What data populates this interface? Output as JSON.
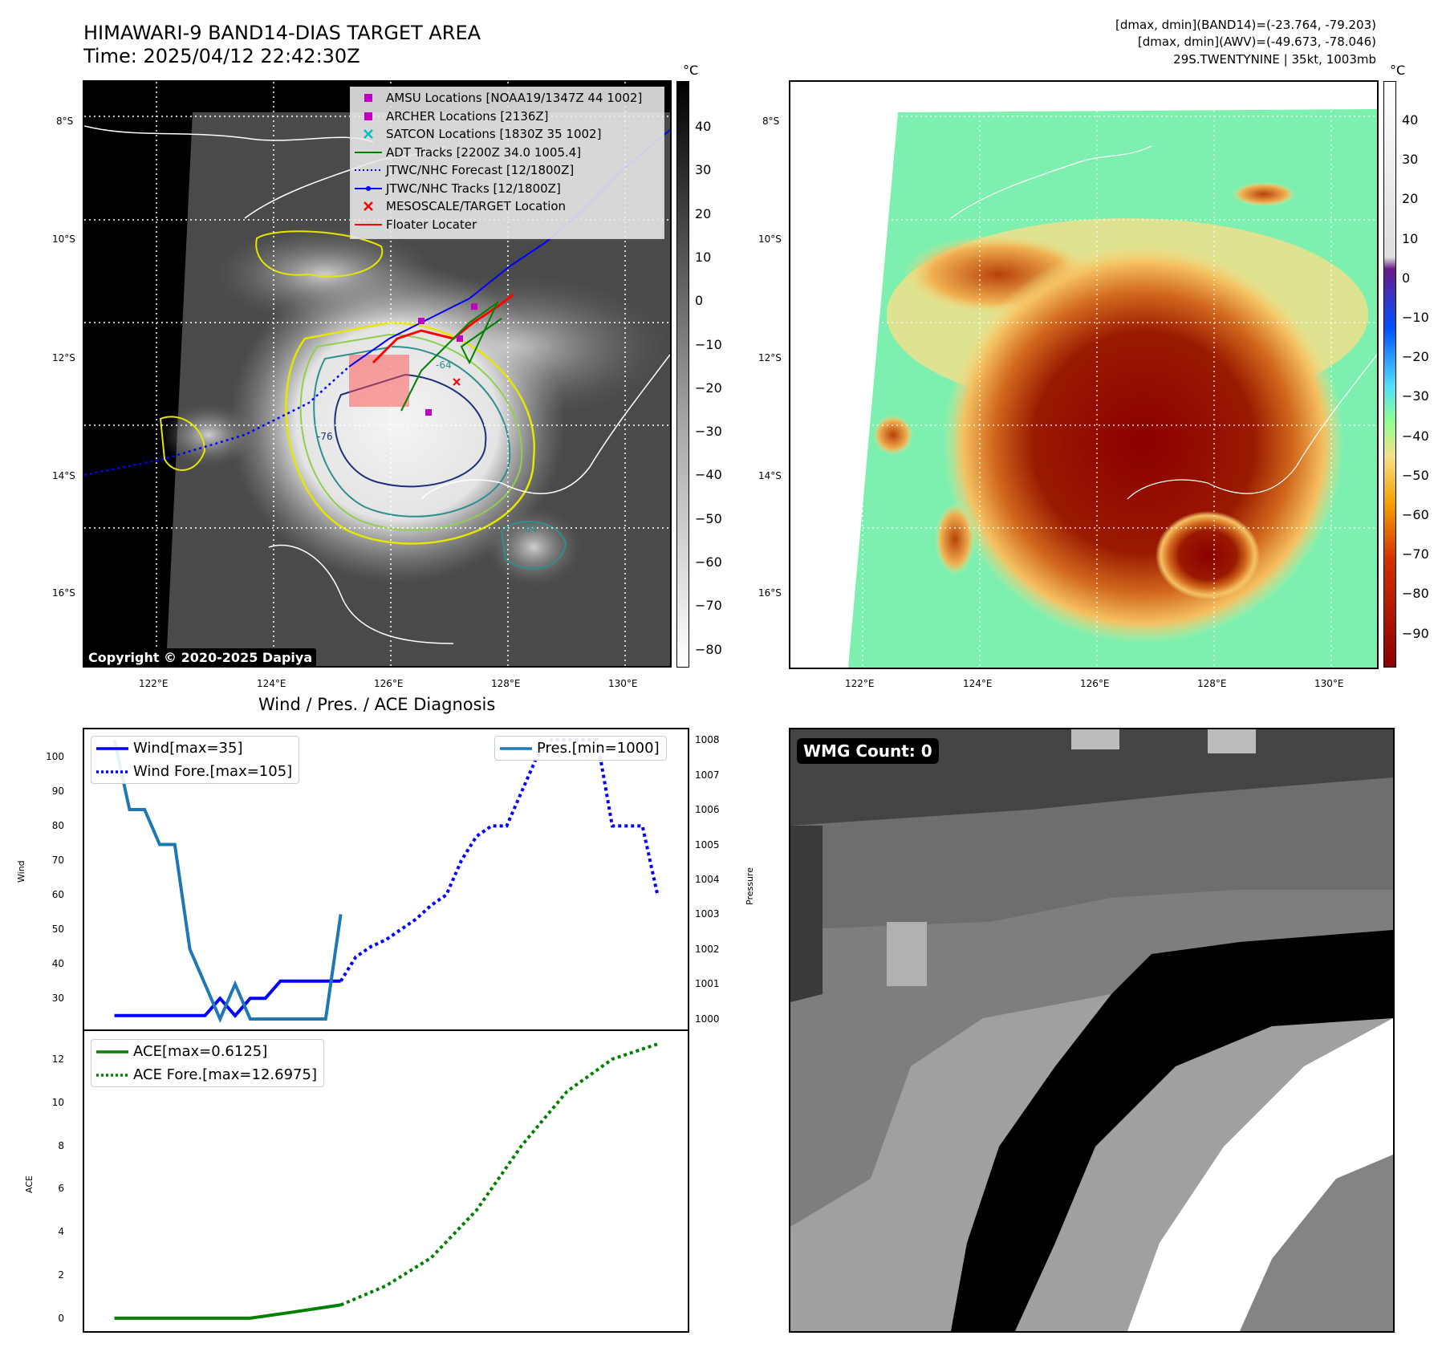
{
  "header": {
    "title_line1": "HIMAWARI-9 BAND14-DIAS TARGET AREA",
    "title_line2": "Time: 2025/04/12 22:42:30Z",
    "info_line1": "[dmax, dmin](BAND14)=(-23.764, -79.203)",
    "info_line2": "[dmax, dmin](AWV)=(-49.673, -78.046)",
    "info_line3": "29S.TWENTYNINE | 35kt, 1003mb"
  },
  "map": {
    "lat_labels": [
      "8°S",
      "10°S",
      "12°S",
      "14°S",
      "16°S"
    ],
    "lon_labels": [
      "122°E",
      "124°E",
      "126°E",
      "128°E",
      "130°E"
    ],
    "contour_labels": [
      "-64",
      "-76",
      "-64"
    ],
    "copyright": "Copyright © 2020-2025 Dapiya",
    "legend": [
      {
        "label": "AMSU Locations [NOAA19/1347Z 44 1002]",
        "symbol": "square",
        "color": "#c000c0"
      },
      {
        "label": "ARCHER Locations [2136Z]",
        "symbol": "square",
        "color": "#c000c0"
      },
      {
        "label": "SATCON Locations [1830Z 35 1002]",
        "symbol": "x",
        "color": "#00c0c0"
      },
      {
        "label": "ADT Tracks [2200Z 34.0 1005.4]",
        "symbol": "line",
        "color": "#008000"
      },
      {
        "label": "JTWC/NHC Forecast [12/1800Z]",
        "symbol": "dotted",
        "color": "#0000ff"
      },
      {
        "label": "JTWC/NHC Tracks [12/1800Z]",
        "symbol": "dotline",
        "color": "#0000ff"
      },
      {
        "label": "MESOSCALE/TARGET Location",
        "symbol": "x",
        "color": "#ff0000"
      },
      {
        "label": "Floater Locater",
        "symbol": "line",
        "color": "#ff0000"
      }
    ]
  },
  "colorbar_left": {
    "unit": "°C",
    "ticks": [
      "40",
      "30",
      "20",
      "10",
      "0",
      "−10",
      "−20",
      "−30",
      "−40",
      "−50",
      "−60",
      "−70",
      "−80"
    ]
  },
  "colorbar_right": {
    "unit": "°C",
    "ticks": [
      "40",
      "30",
      "20",
      "10",
      "0",
      "−10",
      "−20",
      "−30",
      "−40",
      "−50",
      "−60",
      "−70",
      "−80",
      "−90"
    ]
  },
  "wmg": {
    "label": "WMG Count: 0"
  },
  "chart_data": [
    {
      "type": "line",
      "title": "Wind / Pres. / ACE Diagnosis",
      "ylabel": "Wind",
      "ylabel_right": "Pressure",
      "ylim": [
        21,
        108
      ],
      "ylim_right": [
        999.7,
        1008.3
      ],
      "yticks": [
        30,
        40,
        50,
        60,
        70,
        80,
        90,
        100
      ],
      "yticks_right": [
        1000,
        1001,
        1002,
        1003,
        1004,
        1005,
        1006,
        1007,
        1008
      ],
      "legend_left": [
        "Wind[max=35]",
        "Wind Fore.[max=105]"
      ],
      "legend_right": [
        "Pres.[min=1000]"
      ],
      "series": [
        {
          "name": "Wind[max=35]",
          "color": "#0000ff",
          "style": "solid",
          "x": [
            0,
            1,
            2,
            3,
            4,
            5,
            6,
            7,
            8,
            9,
            10,
            11,
            12,
            13,
            14,
            15
          ],
          "values": [
            25,
            25,
            25,
            25,
            25,
            25,
            25,
            30,
            25,
            30,
            30,
            35,
            35,
            35,
            35,
            35
          ]
        },
        {
          "name": "Wind Fore.[max=105]",
          "color": "#0000ff",
          "style": "dotted",
          "x": [
            15,
            16,
            17,
            18,
            19,
            20,
            21,
            22,
            23,
            24,
            25,
            26,
            27,
            28,
            29,
            30,
            31,
            32,
            33,
            34,
            35,
            36
          ],
          "values": [
            35,
            42,
            45,
            47,
            50,
            53,
            57,
            60,
            70,
            77,
            80,
            80,
            90,
            100,
            105,
            105,
            105,
            105,
            80,
            80,
            80,
            60
          ]
        },
        {
          "name": "Pres.[min=1000]",
          "color": "#1f77b4",
          "style": "solid",
          "axis": "right",
          "x": [
            0,
            1,
            2,
            3,
            4,
            5,
            6,
            7,
            8,
            9,
            10,
            11,
            12,
            13,
            14,
            15
          ],
          "values": [
            1008,
            1006,
            1006,
            1005,
            1005,
            1002,
            1001,
            1000,
            1001,
            1000,
            1000,
            1000,
            1000,
            1000,
            1000,
            1003
          ]
        }
      ]
    },
    {
      "type": "line",
      "ylabel": "ACE",
      "ylim": [
        -0.6,
        13.3
      ],
      "yticks": [
        0,
        2,
        4,
        6,
        8,
        10,
        12
      ],
      "series": [
        {
          "name": "ACE[max=0.6125]",
          "color": "#008000",
          "style": "solid",
          "x": [
            0,
            3,
            6,
            9,
            12,
            15
          ],
          "values": [
            0,
            0,
            0,
            0,
            0.3,
            0.6125
          ]
        },
        {
          "name": "ACE Fore.[max=12.6975]",
          "color": "#008000",
          "style": "dotted",
          "x": [
            15,
            18,
            21,
            24,
            27,
            30,
            33,
            36
          ],
          "values": [
            0.6125,
            1.5,
            2.8,
            5,
            8,
            10.5,
            12,
            12.6975
          ]
        }
      ]
    }
  ]
}
